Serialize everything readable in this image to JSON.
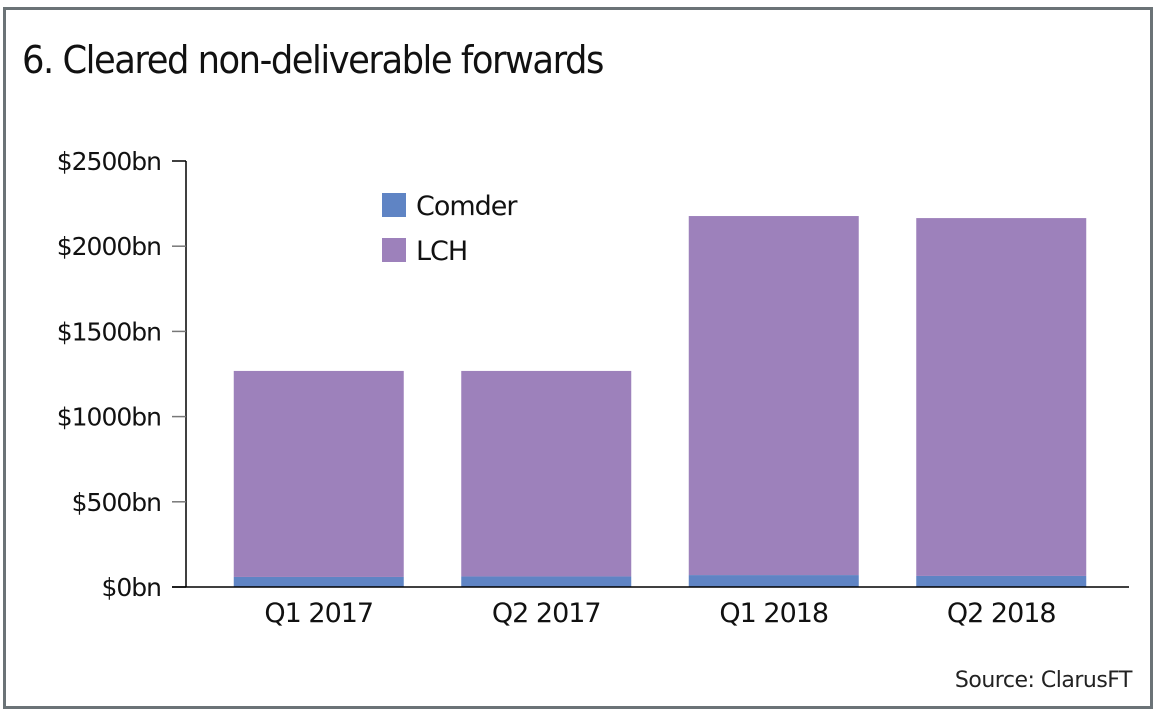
{
  "chart_data": {
    "type": "bar",
    "stacked": true,
    "title": "6. Cleared non-deliverable forwards",
    "source": "Source: ClarusFT",
    "categories": [
      "Q1 2017",
      "Q2 2017",
      "Q1 2018",
      "Q2 2018"
    ],
    "series": [
      {
        "name": "Comder",
        "color": "#5f84c4",
        "values": [
          59,
          62,
          70,
          65
        ]
      },
      {
        "name": "LCH",
        "color": "#9d81bb",
        "values": [
          1209,
          1206,
          2107,
          2100
        ]
      }
    ],
    "totals": [
      1268,
      1268,
      2177,
      2165
    ],
    "xlabel": "",
    "ylabel": "",
    "ylim": [
      0,
      2500
    ],
    "yticks": [
      0,
      500,
      1000,
      1500,
      2000,
      2500
    ],
    "ytick_labels": [
      "$0bn",
      "$500bn",
      "$1000bn",
      "$1500bn",
      "$2000bn",
      "$2500bn"
    ],
    "grid": false,
    "legend_position": "top-left"
  }
}
